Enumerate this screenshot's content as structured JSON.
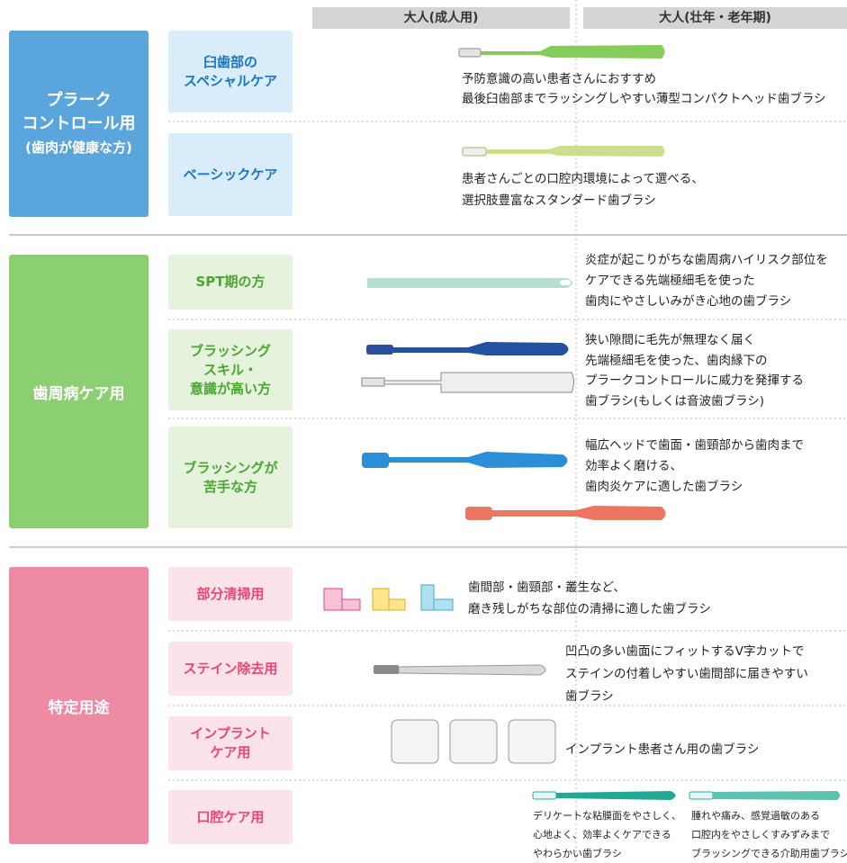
{
  "header": {
    "columns": [
      "大人(成人用)",
      "大人(壮年・老年期)"
    ]
  },
  "groups": [
    {
      "label": [
        "プラーク",
        "コントロール用",
        "(歯肉が健康な方)"
      ],
      "rows": [
        {
          "label": [
            "臼歯部の",
            "スペシャルケア"
          ],
          "descriptions": [
            [
              "予防意識の高い患者さんにおすすめ",
              "最後臼歯部までラッシングしやすい薄型コンパクトヘッド歯ブラシ"
            ]
          ]
        },
        {
          "label": [
            "ベーシックケア"
          ],
          "descriptions": [
            [
              "患者さんごとの口腔内環境によって選べる、",
              "選択肢豊富なスタンダード歯ブラシ"
            ]
          ]
        }
      ]
    },
    {
      "label": [
        "歯周病ケア用"
      ],
      "rows": [
        {
          "label": [
            "SPT期の方"
          ],
          "descriptions": [
            [
              "炎症が起こりがちな歯周病ハイリスク部位を",
              "ケアできる先端極細毛を使った",
              "歯肉にやさしいみがき心地の歯ブラシ"
            ]
          ]
        },
        {
          "label": [
            "ブラッシング",
            "スキル・",
            "意識が高い方"
          ],
          "descriptions": [
            [
              "狭い隙間に毛先が無理なく届く",
              "先端極細毛を使った、歯肉縁下の",
              "プラークコントロールに威力を発揮する",
              "歯ブラシ(もしくは音波歯ブラシ)"
            ]
          ]
        },
        {
          "label": [
            "ブラッシングが",
            "苦手な方"
          ],
          "descriptions": [
            [
              "幅広ヘッドで歯面・歯頸部から歯肉まで",
              "効率よく磨ける、",
              "歯肉炎ケアに適した歯ブラシ"
            ]
          ]
        }
      ]
    },
    {
      "label": [
        "特定用途"
      ],
      "rows": [
        {
          "label": [
            "部分清掃用"
          ],
          "descriptions": [
            [
              "歯間部・歯頸部・叢生など、",
              "磨き残しがちな部位の清掃に適した歯ブラシ"
            ]
          ]
        },
        {
          "label": [
            "ステイン除去用"
          ],
          "descriptions": [
            [
              "凹凸の多い歯面にフィットするV字カットで",
              "ステインの付着しやすい歯間部に届きやすい",
              "歯ブラシ"
            ]
          ]
        },
        {
          "label": [
            "インプラント",
            "ケア用"
          ],
          "descriptions": [
            [
              "インプラント患者さん用の歯ブラシ"
            ]
          ]
        },
        {
          "label": [
            "口腔ケア用"
          ],
          "descriptions": [
            [
              "デリケートな粘膜面をやさしく、",
              "心地よく、効率よくケアできる",
              "やわらかい歯ブラシ"
            ],
            [
              "腫れや痛み、感覚過敏のある",
              "口腔内をやさしくすみずみまで",
              "ブラッシングできる介助用歯ブラシ"
            ]
          ]
        }
      ]
    }
  ]
}
